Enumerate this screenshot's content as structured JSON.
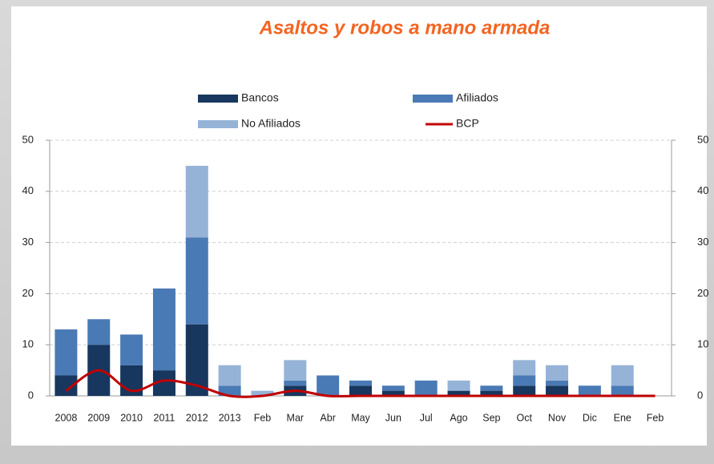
{
  "chart_data": {
    "type": "stacked-bar-line",
    "title": "Asaltos y robos a mano armada",
    "categories": [
      "2008",
      "2009",
      "2010",
      "2011",
      "2012",
      "2013",
      "Feb",
      "Mar",
      "Abr",
      "May",
      "Jun",
      "Jul",
      "Ago",
      "Sep",
      "Oct",
      "Nov",
      "Dic",
      "Ene",
      "Feb"
    ],
    "series": [
      {
        "name": "Bancos",
        "color": "#17375e",
        "type": "bar",
        "values": [
          4,
          10,
          6,
          5,
          14,
          0,
          0,
          2,
          0,
          2,
          1,
          0,
          1,
          1,
          2,
          2,
          0,
          0,
          0
        ]
      },
      {
        "name": "Afiliados",
        "color": "#4a7ab5",
        "type": "bar",
        "values": [
          9,
          5,
          6,
          16,
          17,
          2,
          0,
          1,
          4,
          1,
          1,
          3,
          0,
          1,
          2,
          1,
          2,
          2,
          0
        ]
      },
      {
        "name": "No Afiliados",
        "color": "#95b3d7",
        "type": "bar",
        "values": [
          0,
          0,
          0,
          0,
          14,
          4,
          1,
          4,
          0,
          0,
          0,
          0,
          2,
          0,
          3,
          3,
          0,
          4,
          0
        ]
      },
      {
        "name": "BCP",
        "color": "#c00000",
        "type": "line",
        "axis": "y2",
        "values": [
          1,
          5,
          1,
          3,
          2,
          0,
          0,
          1,
          0,
          0,
          0,
          0,
          0,
          0,
          0,
          0,
          0,
          0,
          0
        ]
      }
    ],
    "ylim": [
      0,
      50
    ],
    "yticks": [
      0,
      10,
      20,
      30,
      40,
      50
    ],
    "y2lim": [
      0,
      50
    ],
    "y2ticks": [
      0,
      10,
      20,
      30,
      40,
      50
    ],
    "grid": true
  }
}
